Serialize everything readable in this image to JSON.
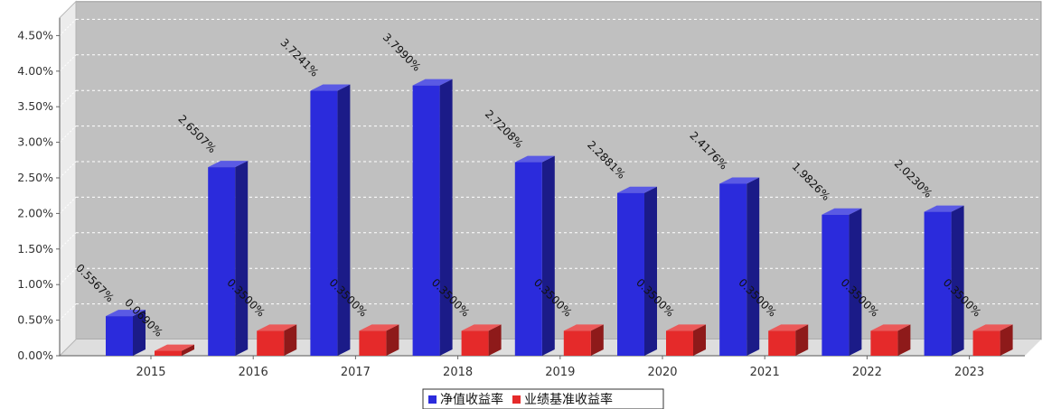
{
  "chart_data": {
    "type": "bar",
    "title": "",
    "xlabel": "",
    "ylabel": "",
    "categories": [
      "2015",
      "2016",
      "2017",
      "2018",
      "2019",
      "2020",
      "2021",
      "2022",
      "2023"
    ],
    "ylim": [
      0,
      4.75
    ],
    "y_ticks": [
      "0.00%",
      "0.50%",
      "1.00%",
      "1.50%",
      "2.00%",
      "2.50%",
      "3.00%",
      "3.50%",
      "4.00%",
      "4.50%"
    ],
    "y_tick_values": [
      0,
      0.5,
      1.0,
      1.5,
      2.0,
      2.5,
      3.0,
      3.5,
      4.0,
      4.5
    ],
    "grid": true,
    "legend_position": "bottom",
    "series": [
      {
        "name": "净值收益率",
        "color": "#2b2bdc",
        "values": [
          0.5567,
          2.6507,
          3.7241,
          3.799,
          2.7208,
          2.2881,
          2.4176,
          1.9826,
          2.023
        ],
        "labels": [
          "0.5567%",
          "2.6507%",
          "3.7241%",
          "3.7990%",
          "2.7208%",
          "2.2881%",
          "2.4176%",
          "1.9826%",
          "2.0230%"
        ]
      },
      {
        "name": "业绩基准收益率",
        "color": "#e52a2a",
        "values": [
          0.069,
          0.35,
          0.35,
          0.35,
          0.35,
          0.35,
          0.35,
          0.35,
          0.35
        ],
        "labels": [
          "0.0690%",
          "0.3500%",
          "0.3500%",
          "0.3500%",
          "0.3500%",
          "0.3500%",
          "0.3500%",
          "0.3500%",
          "0.3500%"
        ]
      }
    ]
  }
}
